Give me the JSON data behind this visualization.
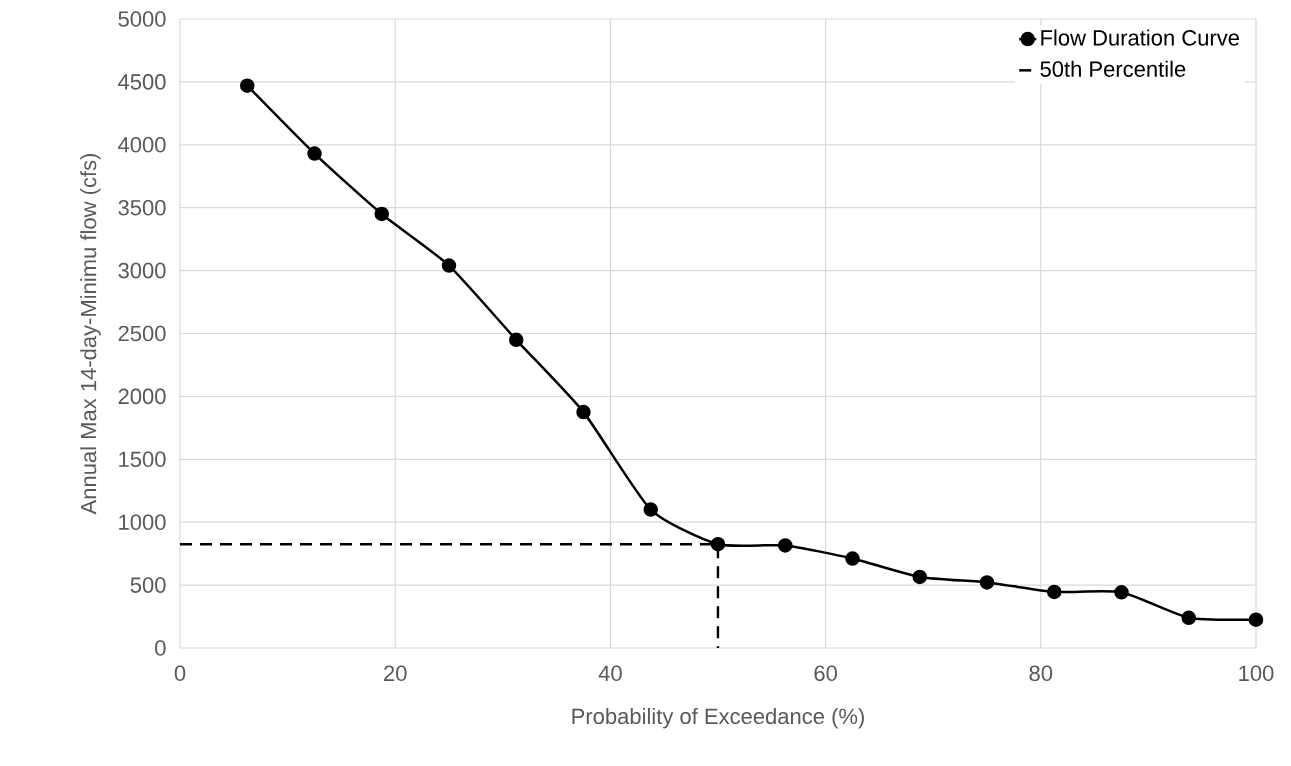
{
  "chart_data": {
    "type": "line",
    "xlabel": "Probability of Exceedance (%)",
    "ylabel": "Annual Max 14-day-Minimu flow (cfs)",
    "series": [
      {
        "name": "Flow Duration Curve",
        "color": "#000000",
        "marker": "circle",
        "line_style": "solid",
        "x": [
          6.25,
          12.5,
          18.75,
          25,
          31.25,
          37.5,
          43.75,
          50,
          56.25,
          62.5,
          68.75,
          75,
          81.25,
          87.5,
          93.75,
          100
        ],
        "values": [
          4470,
          3930,
          3450,
          3040,
          2450,
          1875,
          1100,
          825,
          815,
          711,
          565,
          521,
          446,
          443,
          240,
          225
        ]
      },
      {
        "name": "50th Percentile",
        "color": "#000000",
        "marker": "none",
        "line_style": "dashed",
        "x": [
          0,
          50,
          50
        ],
        "values": [
          825,
          825,
          0
        ]
      }
    ],
    "xlim": [
      0,
      100
    ],
    "xticks": [
      0,
      20,
      40,
      60,
      80,
      100
    ],
    "ylim": [
      0,
      5000
    ],
    "yticks": [
      0,
      500,
      1000,
      1500,
      2000,
      2500,
      3000,
      3500,
      4000,
      4500,
      5000
    ],
    "grid": true,
    "legend": "top right"
  }
}
